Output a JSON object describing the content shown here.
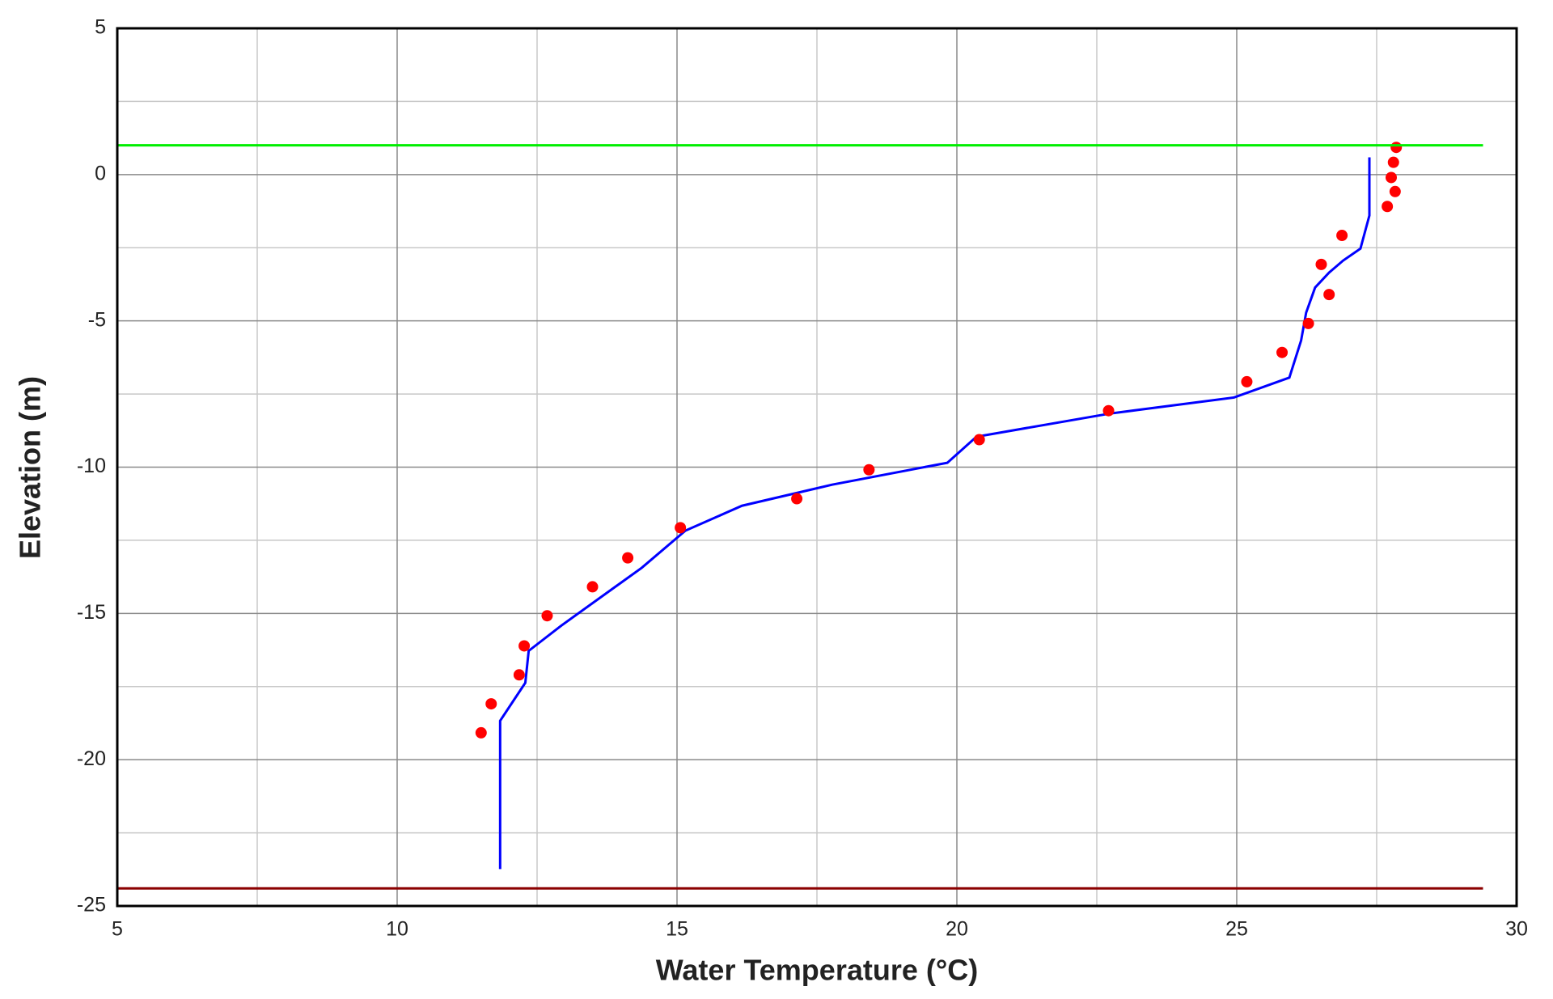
{
  "chart_data": {
    "type": "line",
    "xlabel": "Water Temperature (°C)",
    "ylabel": "Elevation (m)",
    "xlim": [
      5,
      30
    ],
    "xticks": [
      5,
      10,
      15,
      20,
      25,
      30
    ],
    "ylim": [
      -25,
      5
    ],
    "yticks": [
      5,
      0,
      -5,
      -10,
      -15,
      -20,
      -25
    ],
    "minor_xticks": [
      7.5,
      12.5,
      17.5,
      22.5,
      27.5
    ],
    "minor_yticks": [
      2.5,
      -2.5,
      -7.5,
      -12.5,
      -17.5,
      -22.5
    ],
    "grid": true,
    "series": [
      {
        "mark": "line",
        "color": "#0000ff",
        "x": [
          27.37,
          27.37,
          27.21,
          26.9,
          26.65,
          26.4,
          26.24,
          26.15,
          25.94,
          24.95,
          22.73,
          20.35,
          19.83,
          17.77,
          16.16,
          15.15,
          14.37,
          12.93,
          12.35,
          12.29,
          11.84,
          11.84
        ],
        "values": [
          0.59,
          -1.4,
          -2.53,
          -2.94,
          -3.35,
          -3.86,
          -4.72,
          -5.67,
          -6.94,
          -7.62,
          -8.17,
          -8.96,
          -9.85,
          -10.6,
          -11.32,
          -12.17,
          -13.44,
          -15.42,
          -16.28,
          -17.37,
          -18.67,
          -23.74
        ]
      },
      {
        "mark": "scatter",
        "color": "#ff0000",
        "x": [
          27.85,
          27.8,
          27.76,
          27.83,
          27.69,
          26.88,
          26.51,
          26.65,
          26.28,
          25.81,
          25.18,
          22.71,
          20.4,
          18.43,
          17.14,
          15.06,
          14.12,
          13.49,
          12.68,
          12.27,
          12.18,
          11.68,
          11.5
        ],
        "values": [
          0.93,
          0.42,
          -0.1,
          -0.58,
          -1.09,
          -2.08,
          -3.07,
          -4.1,
          -5.09,
          -6.08,
          -7.08,
          -8.07,
          -9.06,
          -10.09,
          -11.08,
          -12.07,
          -13.1,
          -14.09,
          -15.08,
          -16.11,
          -17.1,
          -18.09,
          -19.08
        ]
      },
      {
        "mark": "line",
        "color": "#00ee00",
        "x": [
          5,
          29.4
        ],
        "values": [
          1,
          1
        ]
      },
      {
        "mark": "line",
        "color": "#8b0000",
        "x": [
          5,
          29.4
        ],
        "values": [
          -24.4,
          -24.4
        ]
      }
    ]
  }
}
